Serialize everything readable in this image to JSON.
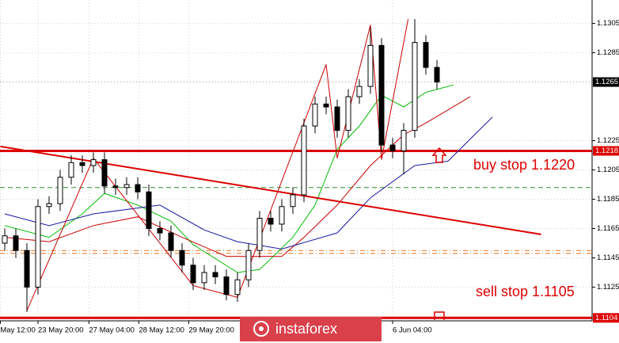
{
  "chart_data": {
    "type": "candlestick",
    "ylim": [
      1.1102,
      1.1321
    ],
    "yticks": [
      1.1305,
      1.1285,
      1.1225,
      1.1205,
      1.1185,
      1.1165,
      1.1145,
      1.1125
    ],
    "xticks": [
      {
        "value": -0.4,
        "label": "May 12:00"
      },
      {
        "value": 3,
        "label": "23 May 20:00"
      },
      {
        "value": 7.6,
        "label": "27 May 04:00"
      },
      {
        "value": 12.1,
        "label": "28 May 12:00"
      },
      {
        "value": 16.6,
        "label": "29 May 20:00"
      },
      {
        "value": 35,
        "label": "6 Jun 04:00"
      }
    ],
    "grid": true,
    "up_color": "#ffffff",
    "down_color": "#000000",
    "open": [
      1.1155,
      1.116,
      1.115,
      1.1125,
      1.118,
      1.1182,
      1.12,
      1.121,
      1.1208,
      1.1212,
      1.1194,
      1.1193,
      1.1195,
      1.119,
      1.1165,
      1.1162,
      1.115,
      1.114,
      1.1128,
      1.1135,
      1.1132,
      1.112,
      1.113,
      1.115,
      1.1172,
      1.1168,
      1.118,
      1.1188,
      1.1235,
      1.125,
      1.1248,
      1.1232,
      1.1255,
      1.1262,
      1.129,
      1.1222,
      1.1218,
      1.1232,
      1.1292,
      1.1275
    ],
    "high": [
      1.1165,
      1.1165,
      1.1155,
      1.1185,
      1.1187,
      1.1205,
      1.1215,
      1.1215,
      1.1217,
      1.1217,
      1.1199,
      1.12,
      1.12,
      1.1195,
      1.117,
      1.1167,
      1.1155,
      1.1145,
      1.114,
      1.114,
      1.1137,
      1.1135,
      1.1155,
      1.1177,
      1.1177,
      1.1185,
      1.1193,
      1.124,
      1.1255,
      1.1255,
      1.1253,
      1.126,
      1.1267,
      1.1302,
      1.1295,
      1.1227,
      1.1237,
      1.1308,
      1.1297,
      1.128
    ],
    "low": [
      1.115,
      1.1145,
      1.1108,
      1.112,
      1.1175,
      1.1177,
      1.1195,
      1.1203,
      1.1203,
      1.1189,
      1.1188,
      1.1188,
      1.1185,
      1.116,
      1.1157,
      1.1145,
      1.1135,
      1.1123,
      1.1123,
      1.1127,
      1.1116,
      1.1115,
      1.1125,
      1.1145,
      1.1163,
      1.1163,
      1.1175,
      1.1183,
      1.123,
      1.1243,
      1.1227,
      1.1227,
      1.125,
      1.1257,
      1.1217,
      1.1213,
      1.1202,
      1.1227,
      1.127,
      1.126
    ],
    "close": [
      1.116,
      1.115,
      1.1125,
      1.118,
      1.1182,
      1.12,
      1.121,
      1.1208,
      1.1212,
      1.1194,
      1.1193,
      1.1195,
      1.119,
      1.1165,
      1.1162,
      1.115,
      1.114,
      1.1128,
      1.1135,
      1.1132,
      1.112,
      1.113,
      1.115,
      1.1172,
      1.1168,
      1.118,
      1.1188,
      1.1235,
      1.125,
      1.1248,
      1.1232,
      1.1255,
      1.1262,
      1.129,
      1.1222,
      1.1218,
      1.1232,
      1.1292,
      1.1275,
      1.1265
    ],
    "lines": [
      {
        "color": "#00bb00",
        "x": [
          0,
          4,
          7,
          9,
          12,
          15,
          17,
          21,
          23,
          26,
          28,
          30,
          32,
          34,
          36,
          38,
          40.5
        ],
        "values": [
          1.1167,
          1.1159,
          1.1175,
          1.1189,
          1.1181,
          1.117,
          1.1154,
          1.1135,
          1.1137,
          1.1159,
          1.1181,
          1.1219,
          1.1235,
          1.1256,
          1.1248,
          1.1258,
          1.1263
        ]
      },
      {
        "color": "#cc0000",
        "x": [
          0,
          4,
          8,
          12,
          16,
          20,
          25,
          27,
          30,
          33,
          36,
          38,
          42
        ],
        "values": [
          1.1159,
          1.1156,
          1.1167,
          1.1173,
          1.1159,
          1.1146,
          1.1146,
          1.1159,
          1.1181,
          1.1208,
          1.1229,
          1.1237,
          1.1255
        ]
      },
      {
        "color": "#1a1aa0",
        "x": [
          0,
          4,
          8,
          14,
          18,
          21,
          25,
          30,
          33,
          37,
          40,
          44
        ],
        "values": [
          1.1175,
          1.1167,
          1.1175,
          1.1181,
          1.1164,
          1.1156,
          1.1151,
          1.1162,
          1.1186,
          1.1208,
          1.1211,
          1.1241
        ]
      },
      {
        "color": "#cc0000",
        "x": [
          2,
          8,
          17,
          21,
          29,
          30,
          33,
          34,
          36.4
        ],
        "values": [
          1.1109,
          1.1213,
          1.1126,
          1.1118,
          1.1277,
          1.1213,
          1.1304,
          1.1212,
          1.1308
        ]
      },
      {
        "color": "#dd0000",
        "x": [
          -0.4,
          48.4
        ],
        "values": [
          1.1221,
          1.1161
        ]
      }
    ],
    "hlines": [
      {
        "value": 1.1265,
        "color": "#999999",
        "style": "dotted",
        "label_color": "#000000"
      },
      {
        "value": 1.1218,
        "color": "#dd0000",
        "style": "solid",
        "label_color": "#dd0000"
      },
      {
        "value": 1.1193,
        "color": "#2e8b2e",
        "style": "dashed"
      },
      {
        "value": 1.115,
        "color": "#e07020",
        "style": "dashdot"
      },
      {
        "value": 1.1148,
        "color": "#e07020",
        "style": "dashdot"
      },
      {
        "value": 1.1104,
        "color": "#dd0000",
        "style": "solid",
        "label_color": "#dd0000"
      }
    ],
    "annotations": [
      {
        "text": "buy stop 1.1220",
        "color": "#dd0000"
      },
      {
        "text": "sell stop 1.1105",
        "color": "#dd0000"
      }
    ],
    "watermark": "instaforex"
  }
}
